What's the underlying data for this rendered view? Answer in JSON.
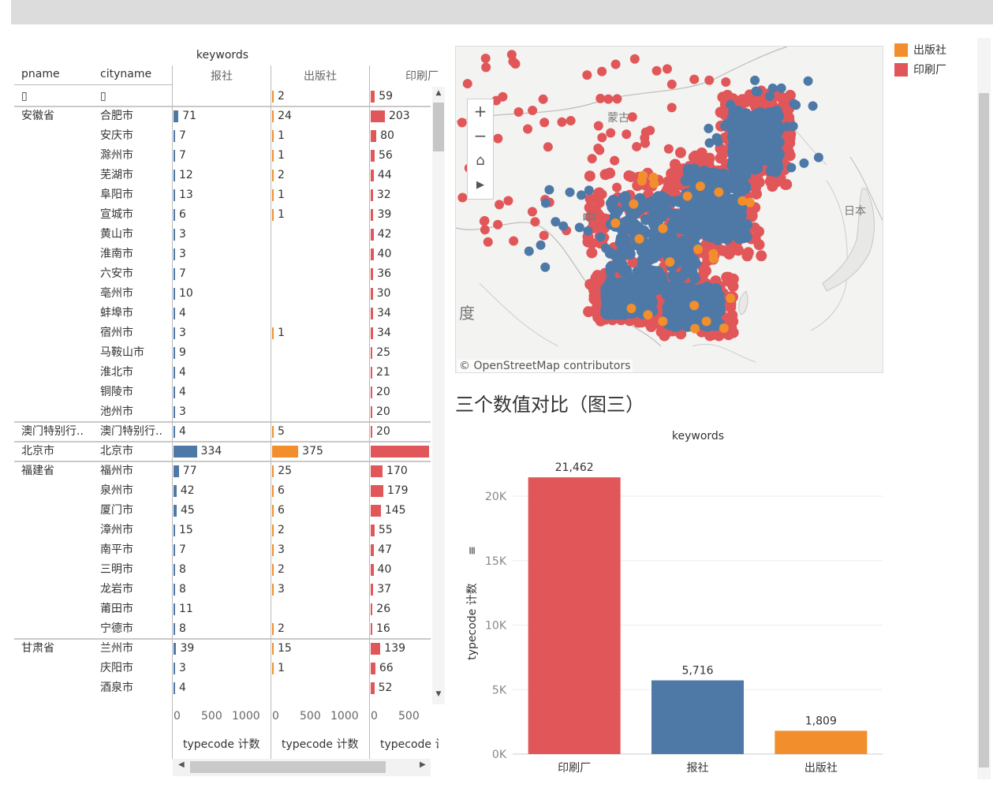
{
  "crosstab": {
    "keywords_label": "keywords",
    "col_headers": {
      "pname": "pname",
      "cityname": "cityname"
    },
    "measures": [
      "报社",
      "出版社",
      "印刷厂"
    ],
    "axis_label": "typecode 计数",
    "axis_ticks": [
      [
        "0",
        "500",
        "1000"
      ],
      [
        "0",
        "500",
        "1000"
      ],
      [
        "0",
        "500"
      ]
    ],
    "rows": [
      {
        "p": "▯",
        "c": "▯",
        "v": [
          null,
          2,
          59
        ],
        "v_text": [
          "",
          "2",
          "59"
        ],
        "group_start": false
      },
      {
        "p": "安徽省",
        "c": "合肥市",
        "v": [
          71,
          24,
          203
        ],
        "v_text": [
          "71",
          "24",
          "203"
        ],
        "group_start": true
      },
      {
        "p": "",
        "c": "安庆市",
        "v": [
          7,
          1,
          80
        ],
        "v_text": [
          "7",
          "1",
          "80"
        ]
      },
      {
        "p": "",
        "c": "滁州市",
        "v": [
          7,
          1,
          56
        ],
        "v_text": [
          "7",
          "1",
          "56"
        ]
      },
      {
        "p": "",
        "c": "芜湖市",
        "v": [
          12,
          2,
          44
        ],
        "v_text": [
          "12",
          "2",
          "44"
        ]
      },
      {
        "p": "",
        "c": "阜阳市",
        "v": [
          13,
          1,
          32
        ],
        "v_text": [
          "13",
          "1",
          "32"
        ]
      },
      {
        "p": "",
        "c": "宣城市",
        "v": [
          6,
          1,
          39
        ],
        "v_text": [
          "6",
          "1",
          "39"
        ]
      },
      {
        "p": "",
        "c": "黄山市",
        "v": [
          3,
          null,
          42
        ],
        "v_text": [
          "3",
          "",
          "42"
        ]
      },
      {
        "p": "",
        "c": "淮南市",
        "v": [
          3,
          null,
          40
        ],
        "v_text": [
          "3",
          "",
          "40"
        ]
      },
      {
        "p": "",
        "c": "六安市",
        "v": [
          7,
          null,
          36
        ],
        "v_text": [
          "7",
          "",
          "36"
        ]
      },
      {
        "p": "",
        "c": "亳州市",
        "v": [
          10,
          null,
          30
        ],
        "v_text": [
          "10",
          "",
          "30"
        ]
      },
      {
        "p": "",
        "c": "蚌埠市",
        "v": [
          4,
          null,
          34
        ],
        "v_text": [
          "4",
          "",
          "34"
        ]
      },
      {
        "p": "",
        "c": "宿州市",
        "v": [
          3,
          1,
          34
        ],
        "v_text": [
          "3",
          "1",
          "34"
        ]
      },
      {
        "p": "",
        "c": "马鞍山市",
        "v": [
          9,
          null,
          25
        ],
        "v_text": [
          "9",
          "",
          "25"
        ]
      },
      {
        "p": "",
        "c": "淮北市",
        "v": [
          4,
          null,
          21
        ],
        "v_text": [
          "4",
          "",
          "21"
        ]
      },
      {
        "p": "",
        "c": "铜陵市",
        "v": [
          4,
          null,
          20
        ],
        "v_text": [
          "4",
          "",
          "20"
        ]
      },
      {
        "p": "",
        "c": "池州市",
        "v": [
          3,
          null,
          20
        ],
        "v_text": [
          "3",
          "",
          "20"
        ]
      },
      {
        "p": "澳门特别行..",
        "c": "澳门特别行..",
        "v": [
          4,
          5,
          20
        ],
        "v_text": [
          "4",
          "5",
          "20"
        ],
        "group_start": true
      },
      {
        "p": "北京市",
        "c": "北京市",
        "v": [
          334,
          375,
          1300
        ],
        "v_text": [
          "334",
          "375",
          ""
        ],
        "group_start": true
      },
      {
        "p": "福建省",
        "c": "福州市",
        "v": [
          77,
          25,
          170
        ],
        "v_text": [
          "77",
          "25",
          "170"
        ],
        "group_start": true
      },
      {
        "p": "",
        "c": "泉州市",
        "v": [
          42,
          6,
          179
        ],
        "v_text": [
          "42",
          "6",
          "179"
        ]
      },
      {
        "p": "",
        "c": "厦门市",
        "v": [
          45,
          6,
          145
        ],
        "v_text": [
          "45",
          "6",
          "145"
        ]
      },
      {
        "p": "",
        "c": "漳州市",
        "v": [
          15,
          2,
          55
        ],
        "v_text": [
          "15",
          "2",
          "55"
        ]
      },
      {
        "p": "",
        "c": "南平市",
        "v": [
          7,
          3,
          47
        ],
        "v_text": [
          "7",
          "3",
          "47"
        ]
      },
      {
        "p": "",
        "c": "三明市",
        "v": [
          8,
          2,
          40
        ],
        "v_text": [
          "8",
          "2",
          "40"
        ]
      },
      {
        "p": "",
        "c": "龙岩市",
        "v": [
          8,
          3,
          37
        ],
        "v_text": [
          "8",
          "3",
          "37"
        ]
      },
      {
        "p": "",
        "c": "莆田市",
        "v": [
          11,
          null,
          26
        ],
        "v_text": [
          "11",
          "",
          "26"
        ]
      },
      {
        "p": "",
        "c": "宁德市",
        "v": [
          8,
          2,
          16
        ],
        "v_text": [
          "8",
          "2",
          "16"
        ]
      },
      {
        "p": "甘肃省",
        "c": "兰州市",
        "v": [
          39,
          15,
          139
        ],
        "v_text": [
          "39",
          "15",
          "139"
        ],
        "group_start": true
      },
      {
        "p": "",
        "c": "庆阳市",
        "v": [
          3,
          1,
          66
        ],
        "v_text": [
          "3",
          "1",
          "66"
        ]
      },
      {
        "p": "",
        "c": "酒泉市",
        "v": [
          4,
          null,
          52
        ],
        "v_text": [
          "4",
          "",
          "52"
        ]
      }
    ]
  },
  "map": {
    "labels": {
      "mongolia": "蒙古",
      "china": "中",
      "india": "度",
      "japan": "日本"
    },
    "attribution": "© OpenStreetMap contributors",
    "controls": {
      "zoom_in": "+",
      "zoom_out": "−",
      "home": "⌂",
      "play": "▶"
    }
  },
  "legend": [
    {
      "label": "出版社",
      "color": "#f28e2b"
    },
    {
      "label": "印刷厂",
      "color": "#e15759"
    }
  ],
  "colors": {
    "报社": "#4e79a7",
    "出版社": "#f28e2b",
    "印刷厂": "#e15759"
  },
  "chart_title": "三个数值对比（图三）",
  "chart_data": {
    "type": "bar",
    "title": "keywords",
    "categories": [
      "印刷厂",
      "报社",
      "出版社"
    ],
    "values": [
      21462,
      5716,
      1809
    ],
    "value_labels": [
      "21,462",
      "5,716",
      "1,809"
    ],
    "ylabel": "typecode 计数",
    "ylim": [
      0,
      23000
    ],
    "yticks": [
      0,
      5000,
      10000,
      15000,
      20000
    ],
    "ytick_labels": [
      "0K",
      "5K",
      "10K",
      "15K",
      "20K"
    ],
    "grid": true
  }
}
